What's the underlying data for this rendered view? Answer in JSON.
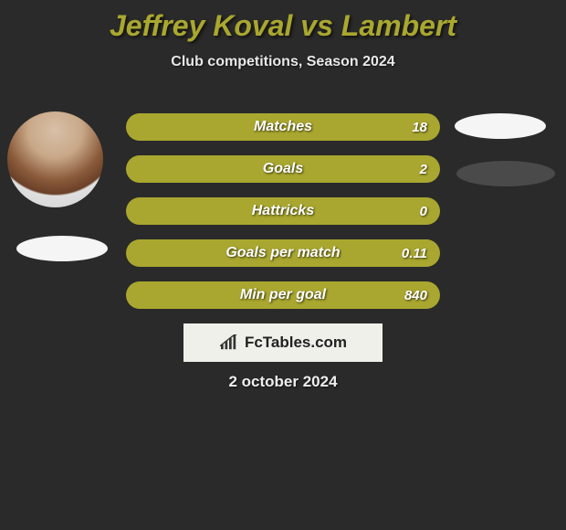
{
  "title": {
    "player1": "Jeffrey Koval",
    "vs": "vs",
    "player2": "Lambert",
    "color": "#a9a72f",
    "fontsize": 32
  },
  "subtitle": "Club competitions, Season 2024",
  "bars": {
    "bar_color": "#a9a72f",
    "border_radius": 15,
    "height": 30,
    "gap": 16,
    "label_fontsize": 16,
    "value_fontsize": 15,
    "items": [
      {
        "label": "Matches",
        "value": "18"
      },
      {
        "label": "Goals",
        "value": "2"
      },
      {
        "label": "Hattricks",
        "value": "0"
      },
      {
        "label": "Goals per match",
        "value": "0.11"
      },
      {
        "label": "Min per goal",
        "value": "840"
      }
    ]
  },
  "ellipses": {
    "left_color": "#f5f5f5",
    "r1_color": "#f5f5f5",
    "r2_color": "#4a4a4a"
  },
  "brand": {
    "text": "FcTables.com",
    "box_bg": "#f0f0ea",
    "text_color": "#222222",
    "icon_color": "#333333"
  },
  "date": "2 october 2024",
  "background_color": "#2a2a2a"
}
